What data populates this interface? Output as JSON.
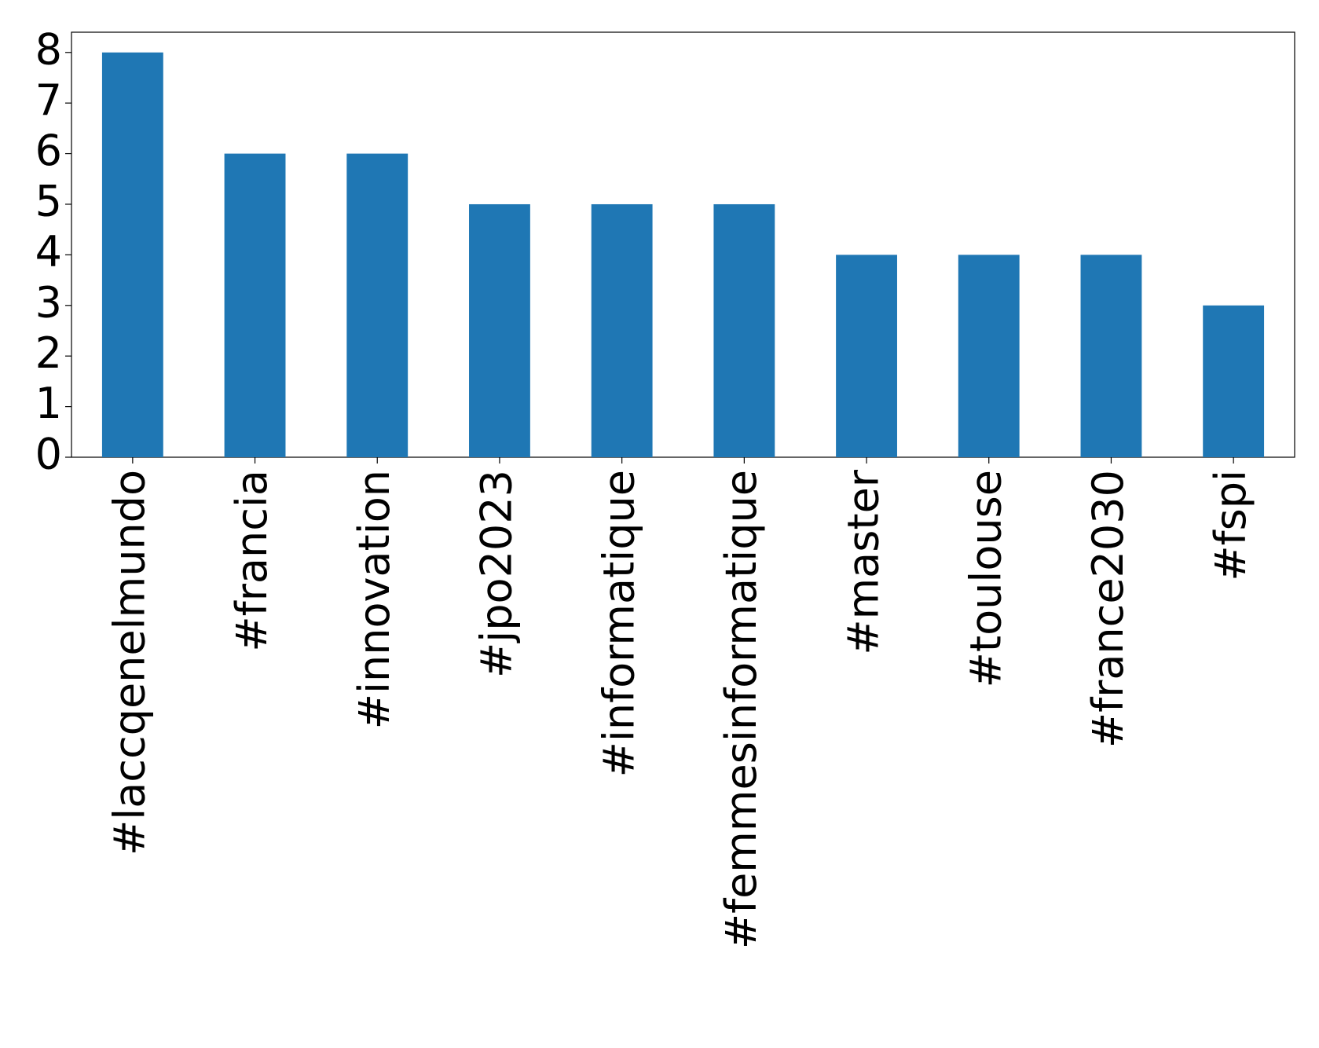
{
  "chart_data": {
    "type": "bar",
    "categories": [
      "#laccqenelmundo",
      "#francia",
      "#innovation",
      "#jpo2023",
      "#informatique",
      "#femmesinformatique",
      "#master",
      "#toulouse",
      "#france2030",
      "#fspi"
    ],
    "values": [
      8,
      6,
      6,
      5,
      5,
      5,
      4,
      4,
      4,
      3
    ],
    "color": "#1f77b4",
    "ylim": [
      0,
      8.4
    ],
    "yticks": [
      0,
      1,
      2,
      3,
      4,
      5,
      6,
      7,
      8
    ],
    "grid": false
  }
}
